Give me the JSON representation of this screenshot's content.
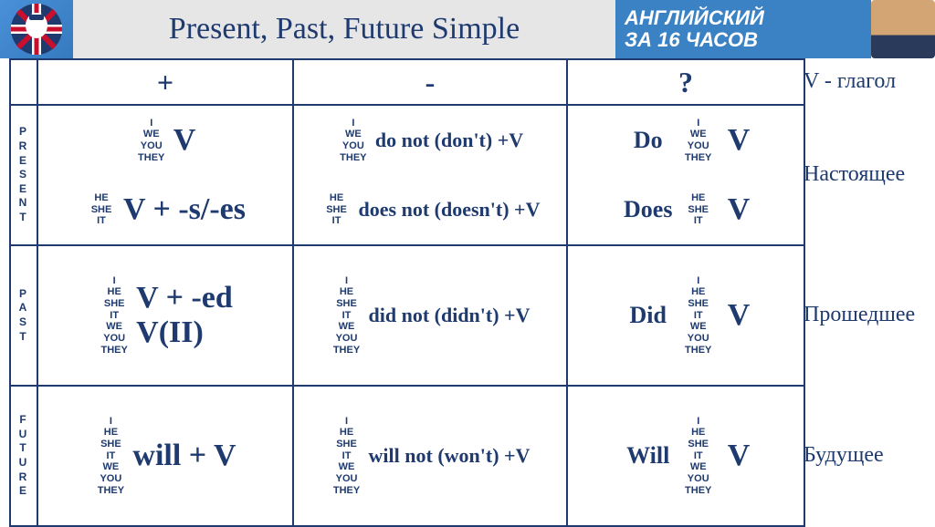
{
  "header": {
    "title": "Present, Past, Future Simple",
    "branding_line1": "АНГЛИЙСКИЙ",
    "branding_line2": "ЗА 16 ЧАСОВ"
  },
  "columns": {
    "affirmative": "+",
    "negative": "-",
    "question": "?"
  },
  "side": {
    "legend": "V - глагол",
    "present": "Настоящее",
    "past": "Прошедшее",
    "future": "Будущее"
  },
  "tense_labels": {
    "present": "PRESENT",
    "past": "PAST",
    "future": "FUTURE"
  },
  "pronouns": {
    "group1_lines": [
      "I",
      "WE",
      "YOU",
      "THEY"
    ],
    "group2_lines": [
      "HE",
      "SHE",
      "IT"
    ],
    "all_lines": [
      "I",
      "HE",
      "SHE",
      "IT",
      "WE",
      "YOU",
      "THEY"
    ]
  },
  "present": {
    "aff1": "V",
    "aff2": "V + -s/-es",
    "neg1": "do not (don't) +V",
    "neg2": "does not (doesn't) +V",
    "q1_aux": "Do",
    "q2_aux": "Does",
    "q_v": "V"
  },
  "past": {
    "aff1": "V + -ed",
    "aff2": "V(II)",
    "neg": "did not (didn't) +V",
    "q_aux": "Did",
    "q_v": "V"
  },
  "future": {
    "aff": "will + V",
    "neg": "will not (won't) +V",
    "q_aux": "Will",
    "q_v": "V"
  },
  "colors": {
    "navy": "#1e3a6e",
    "header_blue": "#3b82c4",
    "header_grey": "#e6e6e6"
  }
}
